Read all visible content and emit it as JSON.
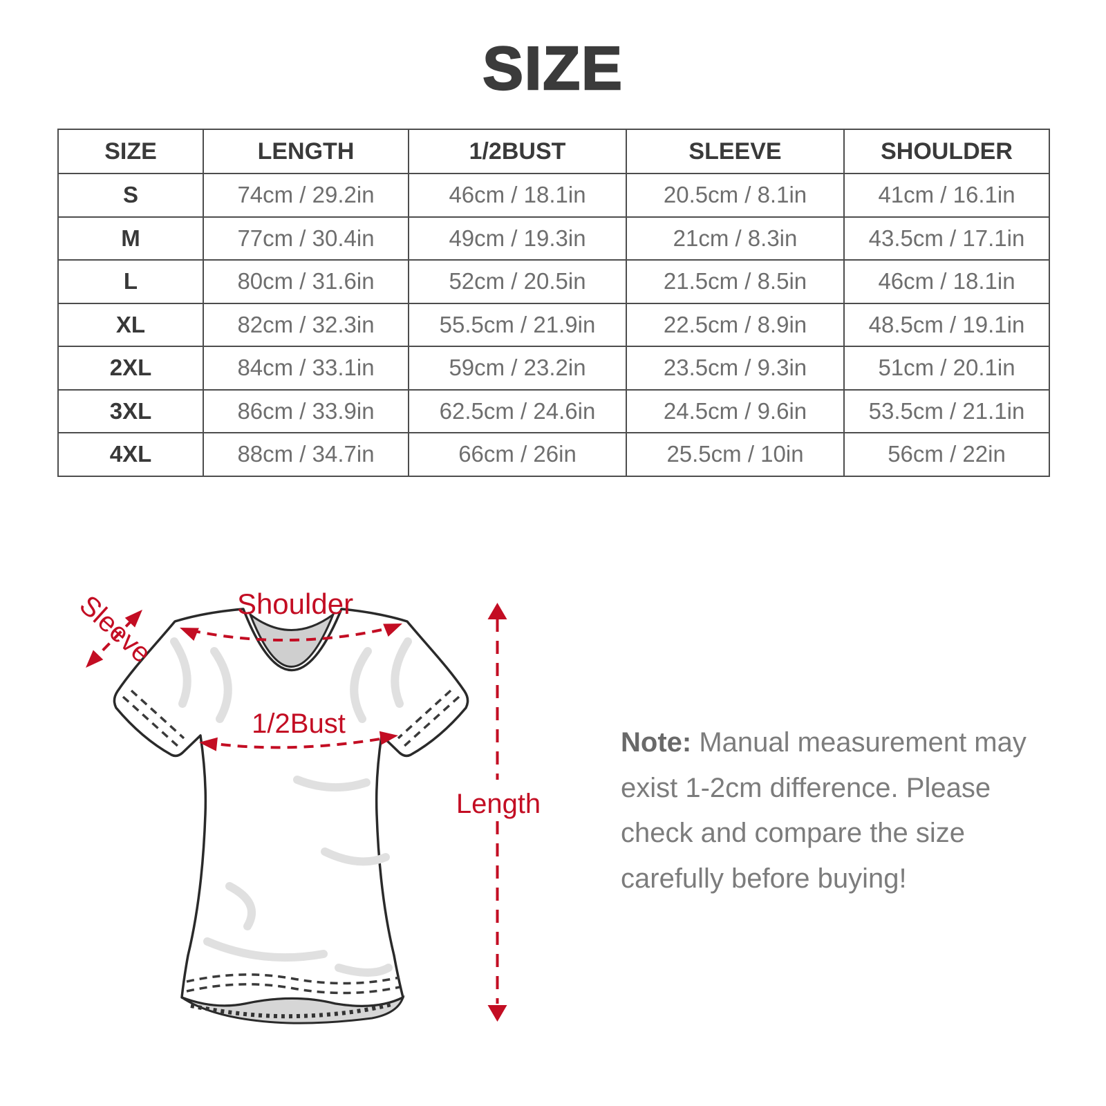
{
  "title": "SIZE",
  "size_table": {
    "headers": [
      "SIZE",
      "LENGTH",
      "1/2BUST",
      "SLEEVE",
      "SHOULDER"
    ],
    "rows": [
      [
        "S",
        "74cm / 29.2in",
        "46cm / 18.1in",
        "20.5cm / 8.1in",
        "41cm / 16.1in"
      ],
      [
        "M",
        "77cm / 30.4in",
        "49cm / 19.3in",
        "21cm / 8.3in",
        "43.5cm / 17.1in"
      ],
      [
        "L",
        "80cm / 31.6in",
        "52cm / 20.5in",
        "21.5cm / 8.5in",
        "46cm / 18.1in"
      ],
      [
        "XL",
        "82cm / 32.3in",
        "55.5cm / 21.9in",
        "22.5cm / 8.9in",
        "48.5cm / 19.1in"
      ],
      [
        "2XL",
        "84cm / 33.1in",
        "59cm / 23.2in",
        "23.5cm / 9.3in",
        "51cm / 20.1in"
      ],
      [
        "3XL",
        "86cm / 33.9in",
        "62.5cm / 24.6in",
        "24.5cm / 9.6in",
        "53.5cm / 21.1in"
      ],
      [
        "4XL",
        "88cm / 34.7in",
        "66cm / 26in",
        "25.5cm / 10in",
        "56cm / 22in"
      ]
    ]
  },
  "diagram": {
    "shoulder_label": "Shoulder",
    "sleeve_label": "Sleeve",
    "bust_label": "1/2Bust",
    "length_label": "Length",
    "accent_color": "#c30d23"
  },
  "note": {
    "label": "Note:",
    "body": " Manual measurement may exist 1-2cm difference. Please check and compare the size carefully before buying!"
  }
}
